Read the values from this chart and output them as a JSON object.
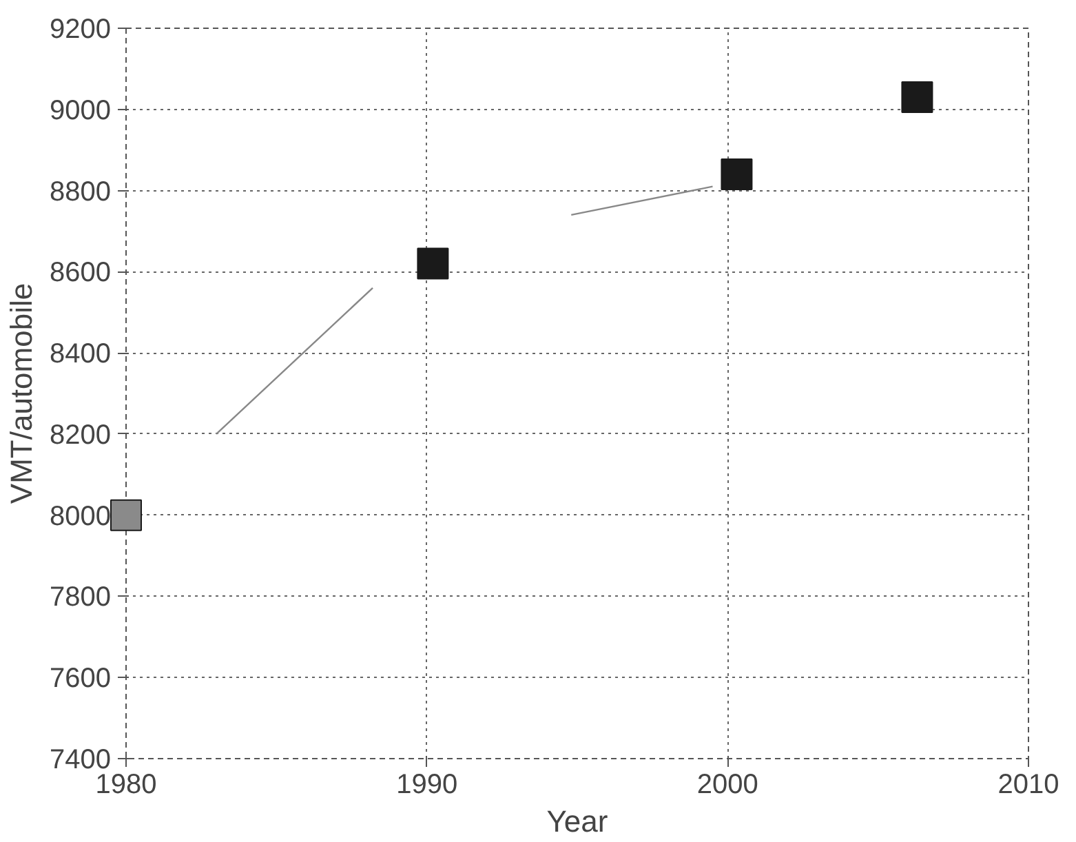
{
  "chart_data": {
    "type": "scatter",
    "xlabel": "Year",
    "ylabel": "VMT/automobile",
    "grid": true,
    "xlim": [
      1980,
      2010
    ],
    "xticks": [
      1980,
      1990,
      2000,
      2010
    ],
    "ylim": [
      7400,
      9200
    ],
    "yticks": [
      7400,
      7600,
      7800,
      8000,
      8200,
      8400,
      8600,
      8800,
      9000,
      9200
    ],
    "series": [
      {
        "marker": "square",
        "color": "#1a1a1a",
        "x": [
          1980,
          1990.2,
          2000.3,
          2006.3
        ],
        "values": [
          8000,
          8620,
          8840,
          9030
        ],
        "colors": [
          "#8a8a8a",
          "#1a1a1a",
          "#1a1a1a",
          "#1a1a1a"
        ]
      },
      {
        "type": "line",
        "color": "#888888",
        "line_style": "solid",
        "x": [
          1983,
          1988.2,
          1994,
          1994.8,
          1999.5
        ],
        "values": [
          8200,
          8560,
          null,
          8740,
          8810
        ]
      }
    ]
  }
}
